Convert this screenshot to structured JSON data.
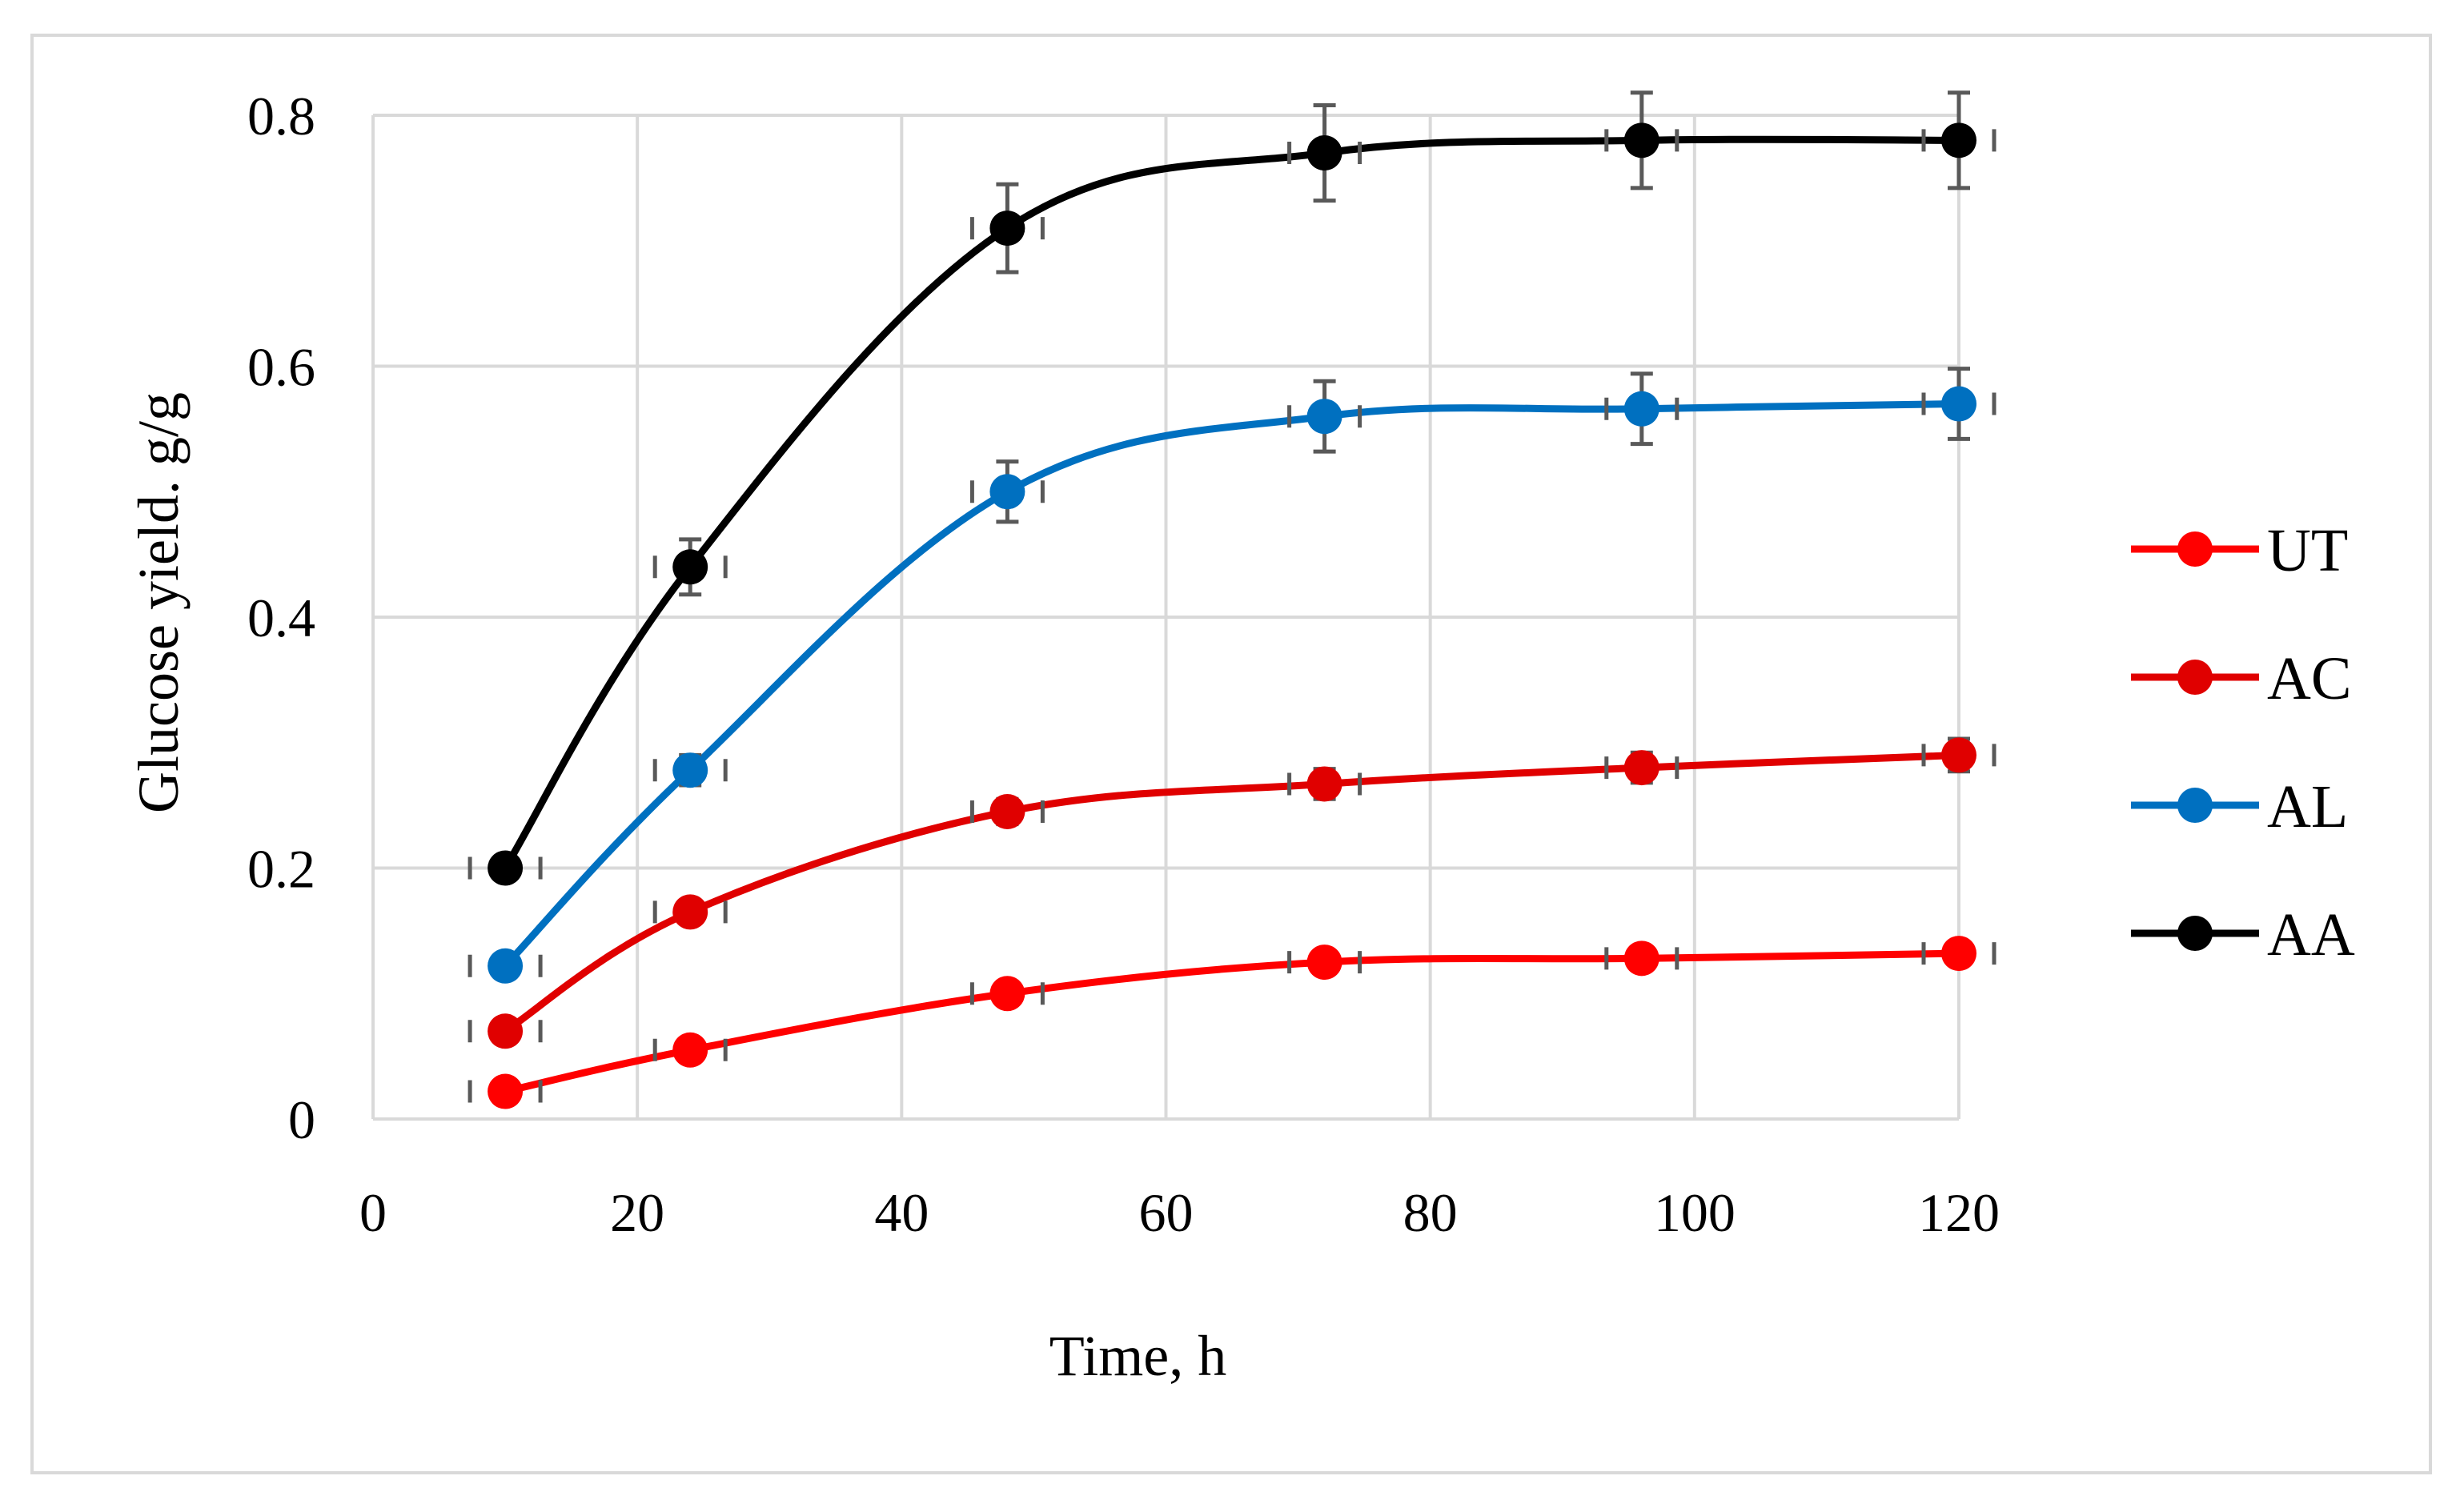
{
  "chart_data": {
    "type": "line",
    "title": "",
    "xlabel": "Time, h",
    "ylabel": "Glucose yield. g/g",
    "xlim": [
      0,
      120
    ],
    "ylim": [
      0,
      0.8
    ],
    "x_ticks": [
      "0",
      "20",
      "40",
      "60",
      "80",
      "100",
      "120"
    ],
    "y_ticks": [
      "0",
      "0.2",
      "0.4",
      "0.6",
      "0.8"
    ],
    "x_tick_values": [
      0,
      20,
      40,
      60,
      80,
      100,
      120
    ],
    "y_tick_values": [
      0,
      0.2,
      0.4,
      0.6,
      0.8
    ],
    "grid": true,
    "legend_position": "right",
    "series": [
      {
        "name": "UT",
        "color": "#ff0000",
        "x": [
          10,
          24,
          48,
          72,
          96,
          120
        ],
        "values": [
          0.022,
          0.055,
          0.1,
          0.125,
          0.128,
          0.132
        ],
        "errors": [
          0.004,
          0.005,
          0.006,
          0.006,
          0.006,
          0.006
        ]
      },
      {
        "name": "AC",
        "color": "#e00000",
        "x": [
          10,
          24,
          48,
          72,
          96,
          120
        ],
        "values": [
          0.07,
          0.165,
          0.245,
          0.267,
          0.28,
          0.29
        ],
        "errors": [
          0.005,
          0.008,
          0.01,
          0.012,
          0.012,
          0.013
        ]
      },
      {
        "name": "AL",
        "color": "#0070c0",
        "x": [
          10,
          24,
          48,
          72,
          96,
          120
        ],
        "values": [
          0.122,
          0.278,
          0.5,
          0.56,
          0.566,
          0.57
        ],
        "errors": [
          0.006,
          0.012,
          0.024,
          0.028,
          0.028,
          0.028
        ]
      },
      {
        "name": "AA",
        "color": "#000000",
        "x": [
          10,
          24,
          48,
          72,
          96,
          120
        ],
        "values": [
          0.2,
          0.44,
          0.71,
          0.77,
          0.78,
          0.78
        ],
        "errors": [
          0.005,
          0.022,
          0.035,
          0.038,
          0.038,
          0.038
        ]
      }
    ]
  }
}
